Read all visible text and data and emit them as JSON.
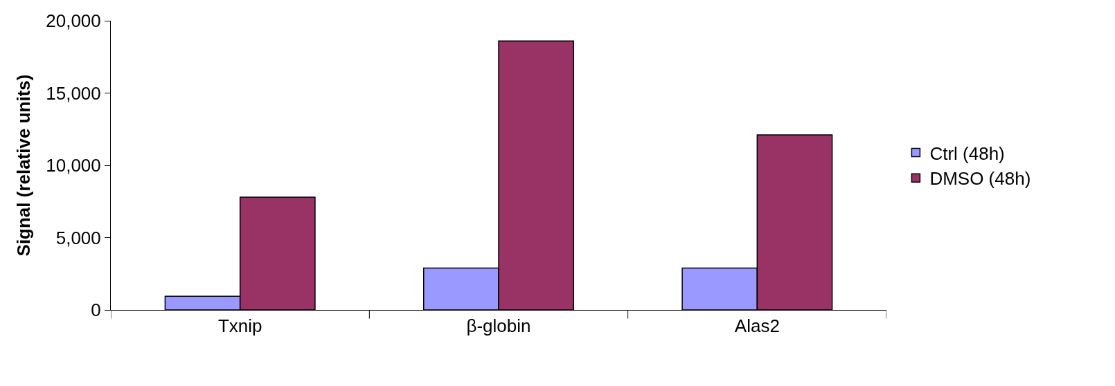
{
  "chart_data": {
    "type": "bar",
    "ylabel": "Signal (relative units)",
    "categories": [
      "Txnip",
      "β-globin",
      "Alas2"
    ],
    "series": [
      {
        "name": "Ctrl (48h)",
        "color": "#9999ff",
        "values": [
          950,
          2900,
          2900
        ]
      },
      {
        "name": "DMSO (48h)",
        "color": "#993366",
        "values": [
          7800,
          18600,
          12100
        ]
      }
    ],
    "ylim": [
      0,
      20000
    ],
    "yticks": [
      {
        "value": 0,
        "label": "0"
      },
      {
        "value": 5000,
        "label": "5,000"
      },
      {
        "value": 10000,
        "label": "10,000"
      },
      {
        "value": 15000,
        "label": "15,000"
      },
      {
        "value": 20000,
        "label": "20,000"
      }
    ],
    "legend": "right"
  }
}
